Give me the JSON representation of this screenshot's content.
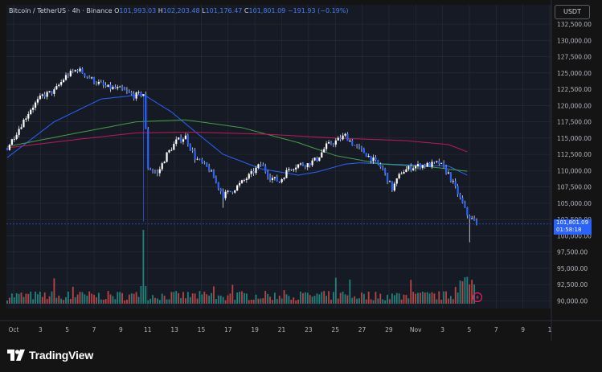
{
  "header": {
    "symbol": "Bitcoin / TetherUS · 4h · Binance",
    "o_label": "O",
    "o_value": "101,993.03",
    "h_label": "H",
    "h_value": "102,203.48",
    "l_label": "L",
    "l_value": "101,176.47",
    "c_label": "C",
    "c_value": "101,801.09",
    "change": "−191.93 (−0.19%)"
  },
  "currency_button": "USDT",
  "last_price": {
    "value": "101,801.09",
    "countdown": "01:58:18"
  },
  "brand": {
    "name": "TradingView"
  },
  "colors": {
    "up": "#26a69a",
    "down": "#ef5350",
    "candle": "#ffffff",
    "ma_blue": "#2962ff",
    "ma_green": "#43a047",
    "ma_red": "#c2185b",
    "price_tag": "#2962ff",
    "background": "#141414",
    "grid": "#2a2e39"
  },
  "icons": {
    "alert": "flash-icon"
  },
  "chart_data": {
    "type": "candlestick",
    "symbol": "BTCUSDT",
    "timeframe": "4h",
    "exchange": "Binance",
    "y_ticks": [
      "132,500.00",
      "130,000.00",
      "127,500.00",
      "125,000.00",
      "122,500.00",
      "120,000.00",
      "117,500.00",
      "115,000.00",
      "112,500.00",
      "110,000.00",
      "107,500.00",
      "105,000.00",
      "102,500.00",
      "100,000.00",
      "97,500.00",
      "95,000.00",
      "92,500.00",
      "90,000.00"
    ],
    "y_tick_values": [
      132500,
      130000,
      127500,
      125000,
      122500,
      120000,
      117500,
      115000,
      112500,
      110000,
      107500,
      105000,
      102500,
      100000,
      97500,
      95000,
      92500,
      90000
    ],
    "ylim": [
      89500,
      134500
    ],
    "x_labels": [
      "Oct",
      "3",
      "5",
      "7",
      "9",
      "11",
      "13",
      "15",
      "17",
      "19",
      "21",
      "23",
      "25",
      "27",
      "29",
      "Nov",
      "3",
      "5",
      "7",
      "9",
      "1"
    ],
    "close_path_keypoints": [
      [
        0,
        113500
      ],
      [
        5,
        116500
      ],
      [
        10,
        119500
      ],
      [
        15,
        121500
      ],
      [
        20,
        122200
      ],
      [
        25,
        124500
      ],
      [
        30,
        125600
      ],
      [
        36,
        124000
      ],
      [
        42,
        122800
      ],
      [
        48,
        122500
      ],
      [
        54,
        121500
      ],
      [
        58,
        121800
      ],
      [
        60,
        110500
      ],
      [
        64,
        109500
      ],
      [
        68,
        112500
      ],
      [
        72,
        114500
      ],
      [
        76,
        115200
      ],
      [
        80,
        112000
      ],
      [
        86,
        110200
      ],
      [
        92,
        106200
      ],
      [
        96,
        107000
      ],
      [
        100,
        108200
      ],
      [
        104,
        109500
      ],
      [
        108,
        111000
      ],
      [
        112,
        109000
      ],
      [
        116,
        108300
      ],
      [
        120,
        110300
      ],
      [
        124,
        110900
      ],
      [
        128,
        111000
      ],
      [
        132,
        111800
      ],
      [
        136,
        113800
      ],
      [
        140,
        114500
      ],
      [
        144,
        115400
      ],
      [
        148,
        113800
      ],
      [
        152,
        112800
      ],
      [
        156,
        111600
      ],
      [
        160,
        110200
      ],
      [
        164,
        107200
      ],
      [
        168,
        109800
      ],
      [
        172,
        110500
      ],
      [
        176,
        110800
      ],
      [
        180,
        110900
      ],
      [
        184,
        111200
      ],
      [
        188,
        109500
      ],
      [
        192,
        106500
      ],
      [
        196,
        103200
      ],
      [
        200,
        101801
      ]
    ],
    "moving_averages": [
      {
        "color": "ma_blue",
        "keypoints": [
          [
            0,
            112000
          ],
          [
            20,
            117500
          ],
          [
            40,
            121000
          ],
          [
            58,
            121700
          ],
          [
            70,
            119000
          ],
          [
            80,
            116000
          ],
          [
            92,
            112500
          ],
          [
            108,
            110300
          ],
          [
            124,
            109300
          ],
          [
            132,
            109800
          ],
          [
            144,
            111000
          ],
          [
            150,
            111200
          ],
          [
            170,
            110900
          ],
          [
            188,
            110700
          ],
          [
            196,
            109300
          ]
        ]
      },
      {
        "color": "ma_green",
        "keypoints": [
          [
            0,
            113700
          ],
          [
            30,
            115800
          ],
          [
            55,
            117500
          ],
          [
            76,
            117800
          ],
          [
            100,
            116600
          ],
          [
            124,
            114300
          ],
          [
            140,
            112300
          ],
          [
            160,
            111000
          ],
          [
            180,
            110600
          ],
          [
            196,
            109900
          ]
        ]
      },
      {
        "color": "ma_red",
        "keypoints": [
          [
            0,
            113500
          ],
          [
            30,
            114800
          ],
          [
            55,
            115800
          ],
          [
            80,
            115900
          ],
          [
            110,
            115600
          ],
          [
            140,
            115000
          ],
          [
            170,
            114600
          ],
          [
            188,
            114000
          ],
          [
            196,
            112900
          ]
        ]
      }
    ],
    "volume_spike_index": 58
  }
}
